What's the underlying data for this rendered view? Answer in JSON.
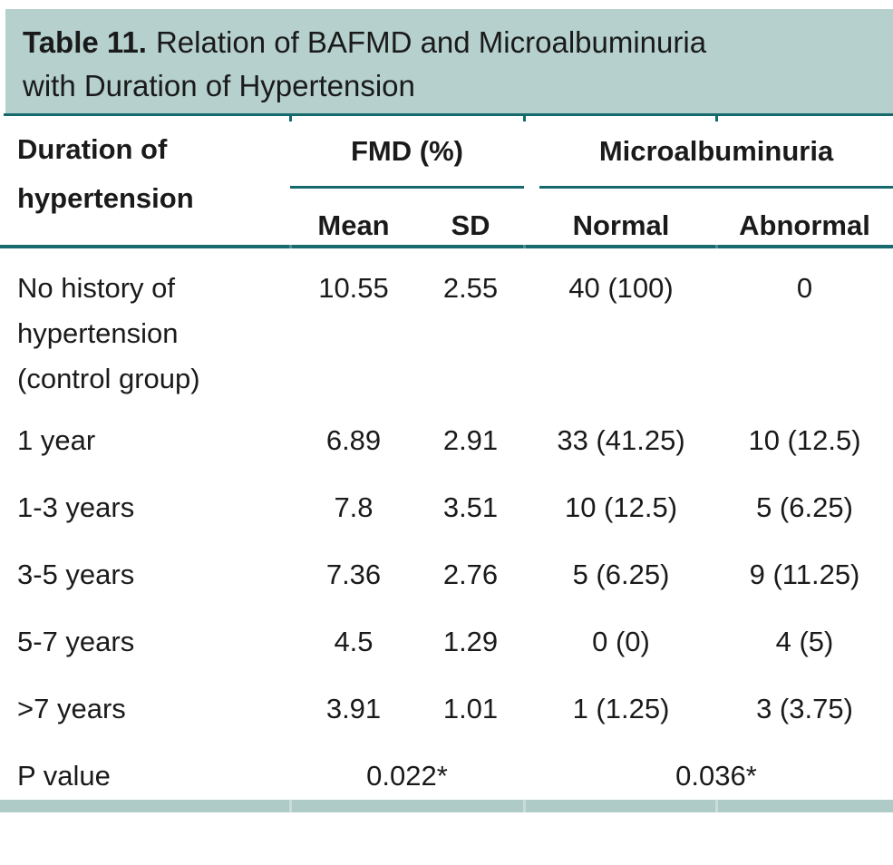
{
  "title": {
    "number": "Table 11.",
    "line1_rest": "Relation of BAFMD and Microalbuminuria",
    "line2": "with Duration of Hypertension"
  },
  "header": {
    "row_label": "Duration of hypertension",
    "groups": [
      {
        "label": "FMD (%)"
      },
      {
        "label": "Microalbuminuria"
      }
    ],
    "subheaders": [
      "Mean",
      "SD",
      "Normal",
      "Abnormal"
    ]
  },
  "rows": [
    {
      "label": "No history of hypertension (control group)",
      "mean": "10.55",
      "sd": "2.55",
      "normal": "40 (100)",
      "abnormal": "0"
    },
    {
      "label": "1 year",
      "mean": "6.89",
      "sd": "2.91",
      "normal": "33 (41.25)",
      "abnormal": "10 (12.5)"
    },
    {
      "label": "1-3 years",
      "mean": "7.8",
      "sd": "3.51",
      "normal": "10 (12.5)",
      "abnormal": "5 (6.25)"
    },
    {
      "label": "3-5 years",
      "mean": "7.36",
      "sd": "2.76",
      "normal": "5 (6.25)",
      "abnormal": "9 (11.25)"
    },
    {
      "label": "5-7 years",
      "mean": "4.5",
      "sd": "1.29",
      "normal": "0 (0)",
      "abnormal": "4 (5)"
    },
    {
      "label": ">7 years",
      "mean": "3.91",
      "sd": "1.01",
      "normal": "1 (1.25)",
      "abnormal": "3 (3.75)"
    }
  ],
  "p_value": {
    "label": "P value",
    "fmd": "0.022*",
    "microalbuminuria": "0.036*"
  },
  "colors": {
    "caption_bg": "#b5d0cd",
    "rule_teal": "#16696c",
    "footer_bg": "#afcbc8",
    "text": "#1a1a1a"
  }
}
